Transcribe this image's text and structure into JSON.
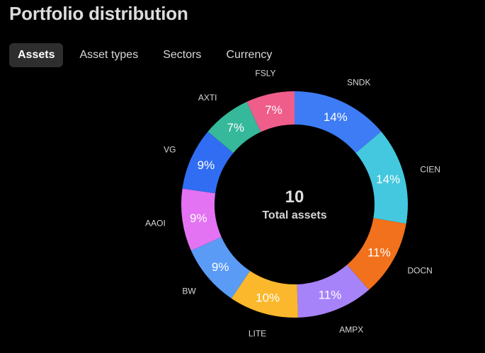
{
  "header": {
    "title": "Portfolio distribution"
  },
  "tabs": [
    {
      "label": "Assets",
      "active": true
    },
    {
      "label": "Asset types",
      "active": false
    },
    {
      "label": "Sectors",
      "active": false
    },
    {
      "label": "Currency",
      "active": false
    }
  ],
  "chart_data": {
    "type": "pie",
    "variant": "donut",
    "center_value": "10",
    "center_caption": "Total assets",
    "slices": [
      {
        "name": "SNDK",
        "value": 14,
        "label": "14%",
        "color": "#3d7cf5"
      },
      {
        "name": "CIEN",
        "value": 14,
        "label": "14%",
        "color": "#44c8df"
      },
      {
        "name": "DOCN",
        "value": 11,
        "label": "11%",
        "color": "#f1711c"
      },
      {
        "name": "AMPX",
        "value": 11,
        "label": "11%",
        "color": "#a783fa"
      },
      {
        "name": "LITE",
        "value": 10,
        "label": "10%",
        "color": "#fbb82d"
      },
      {
        "name": "BW",
        "value": 9,
        "label": "9%",
        "color": "#5a9bf6"
      },
      {
        "name": "AAOI",
        "value": 9,
        "label": "9%",
        "color": "#e373f2"
      },
      {
        "name": "VG",
        "value": 9,
        "label": "9%",
        "color": "#306df3"
      },
      {
        "name": "AXTI",
        "value": 7,
        "label": "7%",
        "color": "#36b89a"
      },
      {
        "name": "FSLY",
        "value": 7,
        "label": "7%",
        "color": "#ef5d8b"
      }
    ]
  }
}
